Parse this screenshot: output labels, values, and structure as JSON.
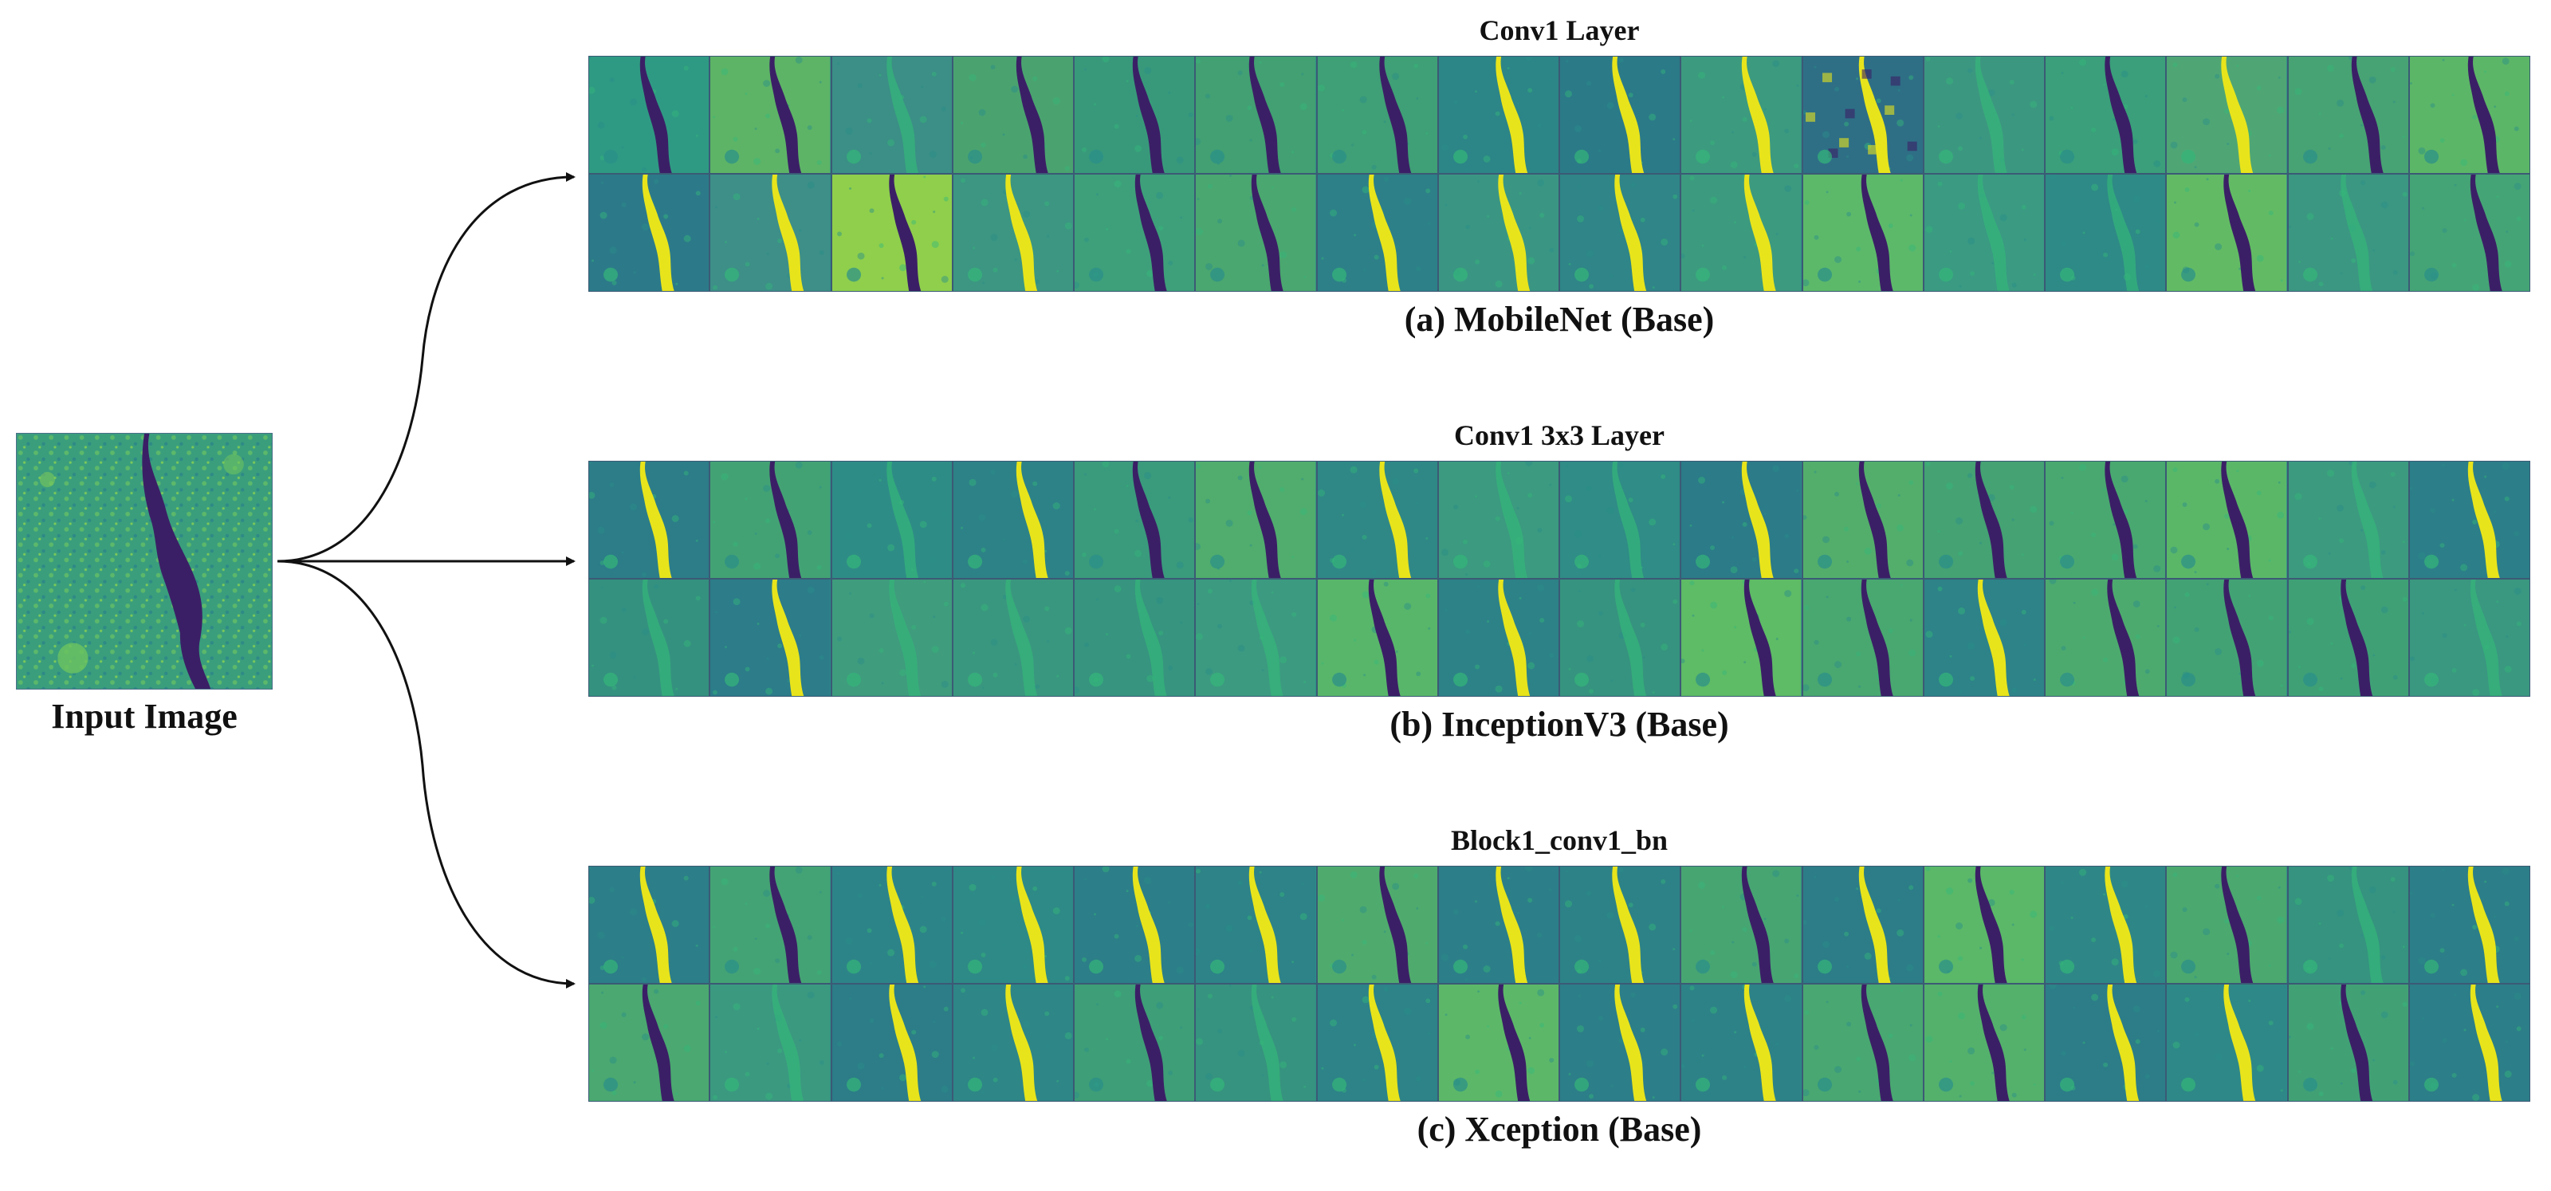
{
  "input": {
    "label": "Input Image"
  },
  "panels": [
    {
      "id": "a",
      "layer_title": "Conv1 Layer",
      "caption": "(a) MobileNet (Base)"
    },
    {
      "id": "b",
      "layer_title": "Conv1 3x3 Layer",
      "caption": "(b) InceptionV3 (Base)"
    },
    {
      "id": "c",
      "layer_title": "Block1_conv1_bn",
      "caption": "(c) Xception (Base)"
    }
  ],
  "grid": {
    "rows": 2,
    "cols": 16
  },
  "colors": {
    "map_dark": "#3b1f66",
    "map_mid": "#2a8e8a",
    "map_green": "#35b779",
    "map_bright": "#e8e41c",
    "border": "#3b5a75",
    "arrow": "#111111"
  },
  "feature_maps": {
    "a": [
      {
        "variant": "dark",
        "bg": "#2f9a83"
      },
      {
        "variant": "dark",
        "bg": "#5db466"
      },
      {
        "variant": "faint",
        "bg": "#3b8f86"
      },
      {
        "variant": "dark",
        "bg": "#4aa36f"
      },
      {
        "variant": "dark",
        "bg": "#38997a"
      },
      {
        "variant": "dark",
        "bg": "#42a072"
      },
      {
        "variant": "dark",
        "bg": "#3f9f76"
      },
      {
        "variant": "bright",
        "bg": "#2c8587"
      },
      {
        "variant": "bright",
        "bg": "#2b7a88"
      },
      {
        "variant": "bright",
        "bg": "#3c9a7f"
      },
      {
        "variant": "noisy",
        "bg": "#2e6f86"
      },
      {
        "variant": "faint",
        "bg": "#3c9780"
      },
      {
        "variant": "dark",
        "bg": "#3a9f7a"
      },
      {
        "variant": "bright",
        "bg": "#4fa674"
      },
      {
        "variant": "dark",
        "bg": "#47a373"
      },
      {
        "variant": "dark",
        "bg": "#5cb667"
      },
      {
        "variant": "bright",
        "bg": "#2c7a89"
      },
      {
        "variant": "bright",
        "bg": "#3d8f88"
      },
      {
        "variant": "dark",
        "bg": "#8fcf4c"
      },
      {
        "variant": "bright",
        "bg": "#3c9682"
      },
      {
        "variant": "dark",
        "bg": "#3ea07a"
      },
      {
        "variant": "dark",
        "bg": "#4aa76f"
      },
      {
        "variant": "bright",
        "bg": "#2d8088"
      },
      {
        "variant": "bright",
        "bg": "#3a9683"
      },
      {
        "variant": "bright",
        "bg": "#2f8587"
      },
      {
        "variant": "bright",
        "bg": "#3c9a7f"
      },
      {
        "variant": "dark",
        "bg": "#5cb96a"
      },
      {
        "variant": "faint",
        "bg": "#3a9a82"
      },
      {
        "variant": "faint",
        "bg": "#2e8a86"
      },
      {
        "variant": "dark",
        "bg": "#62bb64"
      },
      {
        "variant": "faint",
        "bg": "#3b9781"
      },
      {
        "variant": "dark",
        "bg": "#45a475"
      }
    ],
    "b": [
      {
        "variant": "bright",
        "bg": "#2c7d88"
      },
      {
        "variant": "dark",
        "bg": "#43a274"
      },
      {
        "variant": "faint",
        "bg": "#2e8c86"
      },
      {
        "variant": "bright",
        "bg": "#2d8287"
      },
      {
        "variant": "dark",
        "bg": "#3a9a7c"
      },
      {
        "variant": "dark",
        "bg": "#50ad6d"
      },
      {
        "variant": "bright",
        "bg": "#2f8886"
      },
      {
        "variant": "faint",
        "bg": "#3b9a7f"
      },
      {
        "variant": "faint",
        "bg": "#2f8c86"
      },
      {
        "variant": "bright",
        "bg": "#2b7b88"
      },
      {
        "variant": "dark",
        "bg": "#53ae6b"
      },
      {
        "variant": "dark",
        "bg": "#44a273"
      },
      {
        "variant": "dark",
        "bg": "#49a870"
      },
      {
        "variant": "dark",
        "bg": "#5ab768"
      },
      {
        "variant": "faint",
        "bg": "#3c9a7f"
      },
      {
        "variant": "bright",
        "bg": "#2c7f88"
      },
      {
        "variant": "faint",
        "bg": "#34917f"
      },
      {
        "variant": "bright",
        "bg": "#2c7c89"
      },
      {
        "variant": "faint",
        "bg": "#3f9c7d"
      },
      {
        "variant": "faint",
        "bg": "#3a977f"
      },
      {
        "variant": "faint",
        "bg": "#36947f"
      },
      {
        "variant": "faint",
        "bg": "#3c9a80"
      },
      {
        "variant": "dark",
        "bg": "#58b66a"
      },
      {
        "variant": "bright",
        "bg": "#2d8287"
      },
      {
        "variant": "faint",
        "bg": "#36937f"
      },
      {
        "variant": "dark",
        "bg": "#5ebb66"
      },
      {
        "variant": "dark",
        "bg": "#49a770"
      },
      {
        "variant": "bright",
        "bg": "#2d8388"
      },
      {
        "variant": "dark",
        "bg": "#4daa6e"
      },
      {
        "variant": "dark",
        "bg": "#43a274"
      },
      {
        "variant": "dark",
        "bg": "#3fa076"
      },
      {
        "variant": "faint",
        "bg": "#3a9780"
      }
    ],
    "c": [
      {
        "variant": "bright",
        "bg": "#2c7e88"
      },
      {
        "variant": "dark",
        "bg": "#44a374"
      },
      {
        "variant": "bright",
        "bg": "#2d8488"
      },
      {
        "variant": "bright",
        "bg": "#2e8a86"
      },
      {
        "variant": "bright",
        "bg": "#2c7e88"
      },
      {
        "variant": "bright",
        "bg": "#2d8387"
      },
      {
        "variant": "dark",
        "bg": "#4fab6d"
      },
      {
        "variant": "bright",
        "bg": "#2c7f88"
      },
      {
        "variant": "bright",
        "bg": "#2d8287"
      },
      {
        "variant": "dark",
        "bg": "#47a572"
      },
      {
        "variant": "bright",
        "bg": "#2c7d88"
      },
      {
        "variant": "dark",
        "bg": "#5ab868"
      },
      {
        "variant": "bright",
        "bg": "#2e8786"
      },
      {
        "variant": "dark",
        "bg": "#4ba86f"
      },
      {
        "variant": "faint",
        "bg": "#35937f"
      },
      {
        "variant": "bright",
        "bg": "#2c7e88"
      },
      {
        "variant": "dark",
        "bg": "#4aa870"
      },
      {
        "variant": "faint",
        "bg": "#3b9980"
      },
      {
        "variant": "bright",
        "bg": "#2c7d88"
      },
      {
        "variant": "bright",
        "bg": "#2e8687"
      },
      {
        "variant": "dark",
        "bg": "#3e9e77"
      },
      {
        "variant": "faint",
        "bg": "#36937f"
      },
      {
        "variant": "bright",
        "bg": "#2d8387"
      },
      {
        "variant": "dark",
        "bg": "#5cb868"
      },
      {
        "variant": "bright",
        "bg": "#2c7e88"
      },
      {
        "variant": "bright",
        "bg": "#2d8287"
      },
      {
        "variant": "dark",
        "bg": "#49a771"
      },
      {
        "variant": "dark",
        "bg": "#54b16b"
      },
      {
        "variant": "bright",
        "bg": "#2c7d88"
      },
      {
        "variant": "bright",
        "bg": "#2e8887"
      },
      {
        "variant": "dark",
        "bg": "#41a175"
      },
      {
        "variant": "bright",
        "bg": "#2c7e88"
      }
    ]
  }
}
